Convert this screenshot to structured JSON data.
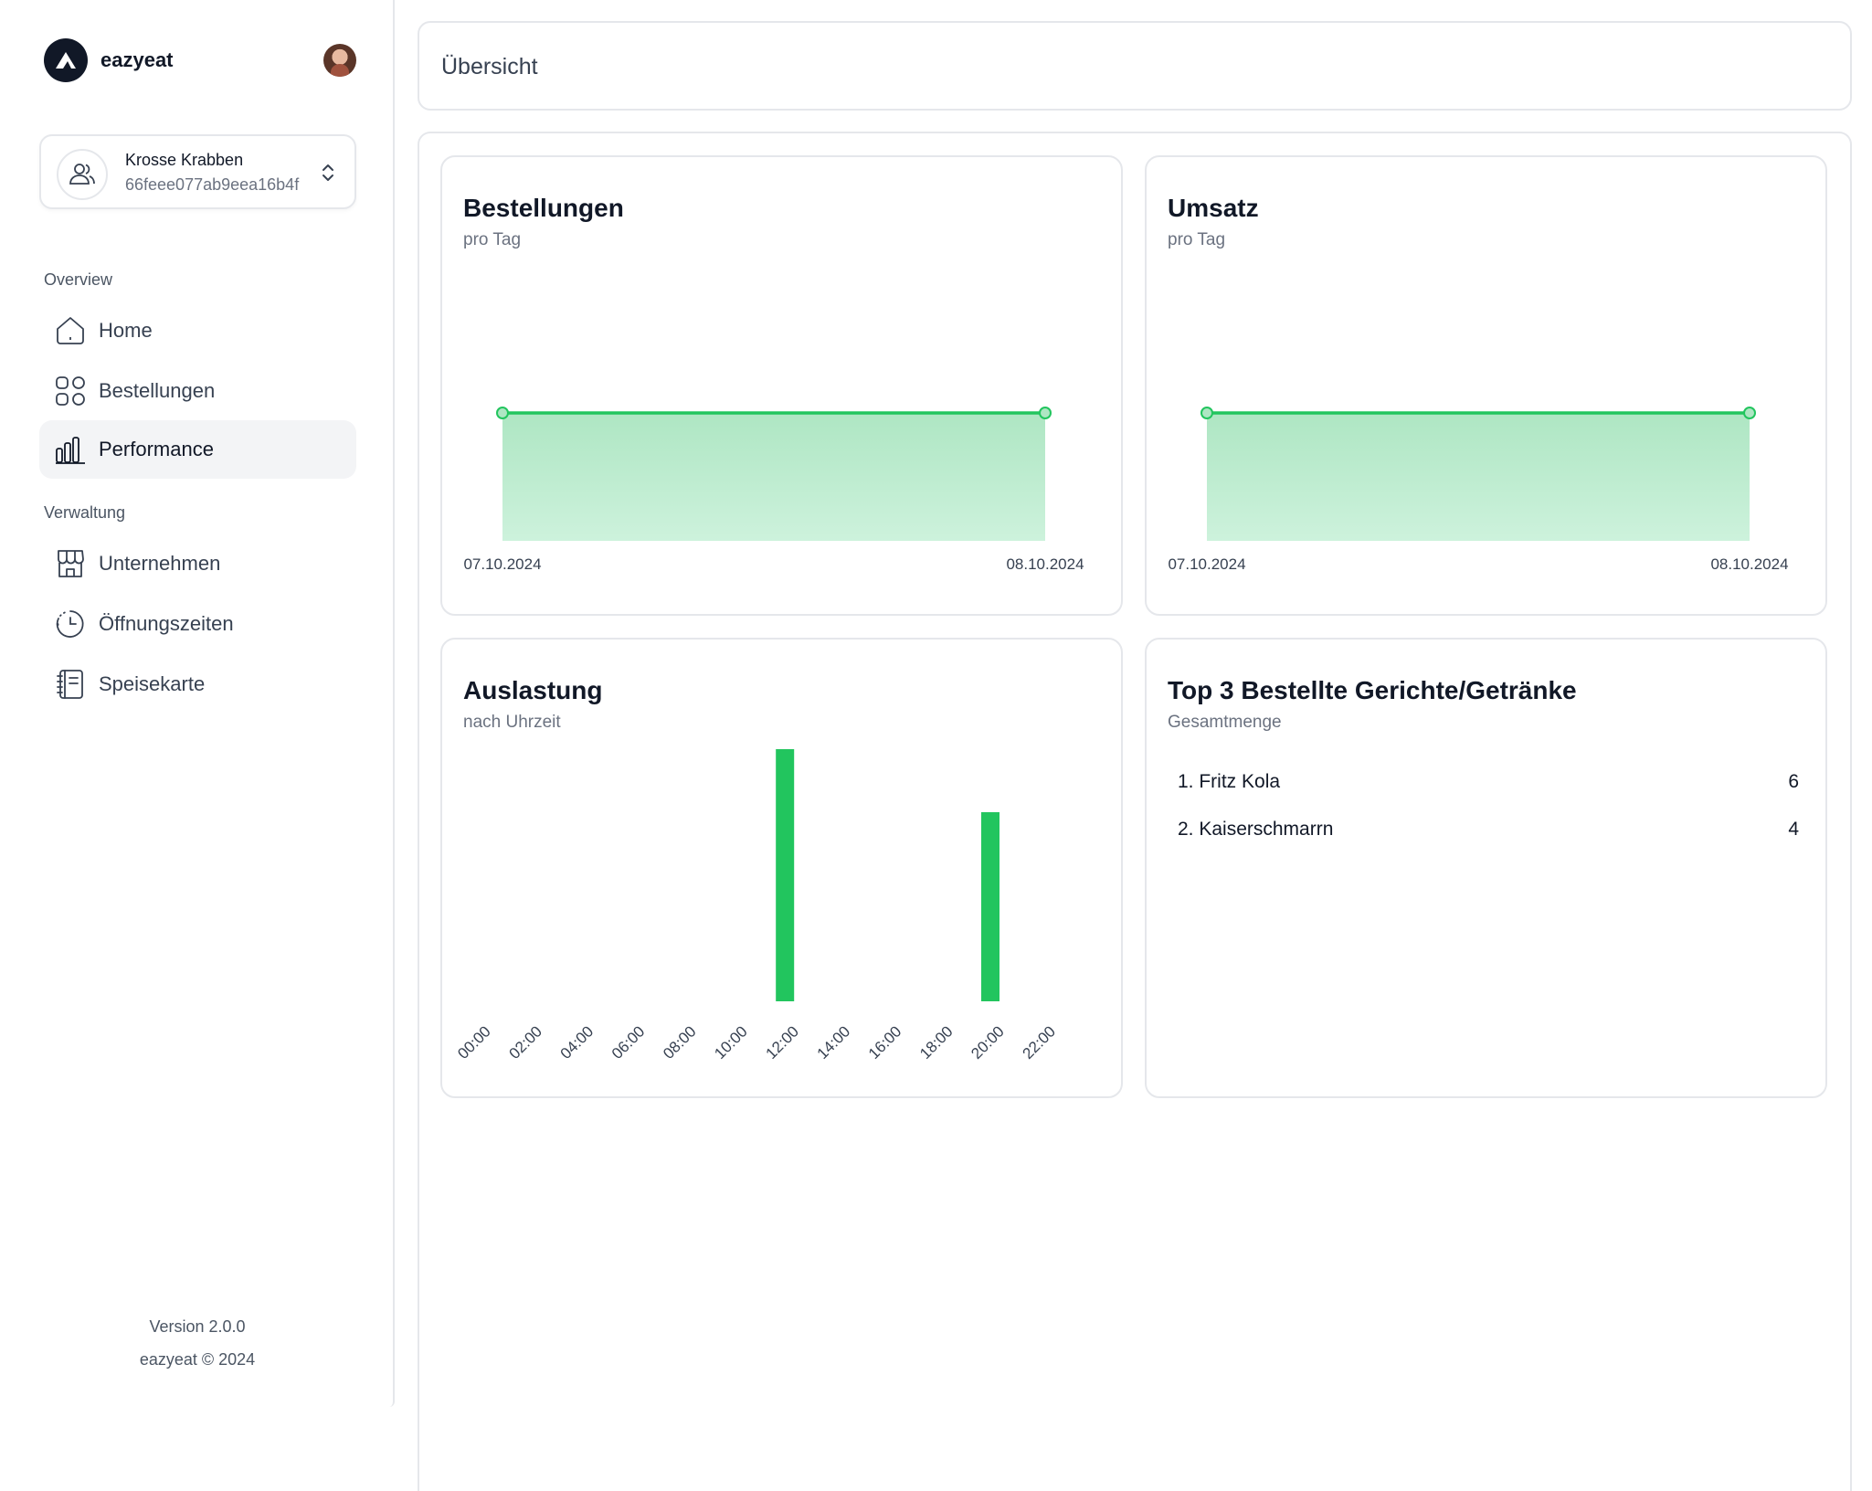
{
  "brand": {
    "name": "eazyeat"
  },
  "tenant": {
    "name": "Krosse Krabben",
    "id": "66feee077ab9eea16b4f"
  },
  "nav": {
    "section_overview": "Overview",
    "section_admin": "Verwaltung",
    "items": [
      {
        "label": "Home",
        "icon": "home-icon"
      },
      {
        "label": "Bestellungen",
        "icon": "grid-icon"
      },
      {
        "label": "Performance",
        "icon": "bar-chart-icon",
        "active": true
      },
      {
        "label": "Unternehmen",
        "icon": "store-icon"
      },
      {
        "label": "Öffnungszeiten",
        "icon": "clock-icon"
      },
      {
        "label": "Speisekarte",
        "icon": "menu-book-icon"
      }
    ]
  },
  "footer": {
    "version": "Version 2.0.0",
    "copyright": "eazyeat © 2024"
  },
  "header": {
    "title": "Übersicht"
  },
  "widgets": {
    "orders": {
      "title": "Bestellungen",
      "subtitle": "pro Tag"
    },
    "revenue": {
      "title": "Umsatz",
      "subtitle": "pro Tag"
    },
    "utilization": {
      "title": "Auslastung",
      "subtitle": "nach Uhrzeit"
    },
    "top3": {
      "title": "Top 3 Bestellte Gerichte/Getränke",
      "subtitle": "Gesamtmenge",
      "items": [
        {
          "label": "1. Fritz Kola",
          "value": "6"
        },
        {
          "label": "2. Kaiserschmarrn",
          "value": "4"
        }
      ]
    }
  },
  "colors": {
    "accent": "#22c55e",
    "area_top": "#aee6c3",
    "area_bottom": "#cdf2dc",
    "border": "#e5e7eb"
  },
  "chart_data": [
    {
      "type": "area",
      "x": [
        "07.10.2024",
        "08.10.2024"
      ],
      "series": [
        {
          "values": [
            1,
            1
          ]
        }
      ],
      "ylim": [
        0,
        2
      ]
    },
    {
      "type": "area",
      "x": [
        "07.10.2024",
        "08.10.2024"
      ],
      "series": [
        {
          "values": [
            1,
            1
          ]
        }
      ],
      "ylim": [
        0,
        2
      ]
    },
    {
      "type": "bar",
      "categories": [
        "00:00",
        "02:00",
        "04:00",
        "06:00",
        "08:00",
        "10:00",
        "12:00",
        "14:00",
        "16:00",
        "18:00",
        "20:00",
        "22:00"
      ],
      "values": [
        0,
        0,
        0,
        0,
        0,
        0,
        4,
        0,
        0,
        0,
        3,
        0
      ],
      "ylim": [
        0,
        4
      ]
    }
  ]
}
